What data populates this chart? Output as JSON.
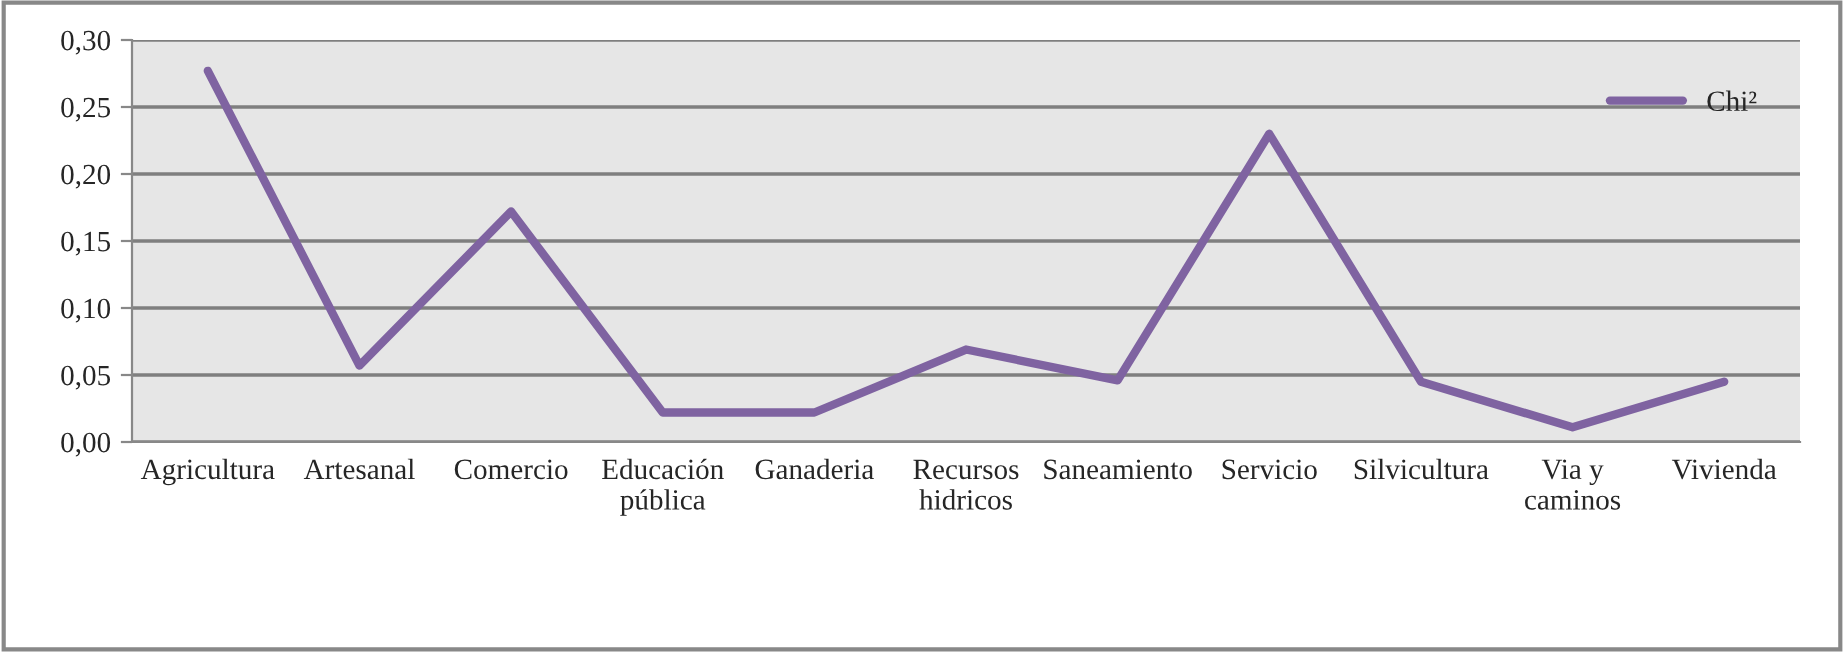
{
  "chart_data": {
    "type": "line",
    "categories": [
      "Agricultura",
      "Artesanal",
      "Comercio",
      "Educación\npública",
      "Ganaderia",
      "Recursos\nhidricos",
      "Saneamiento",
      "Servicio",
      "Silvicultura",
      "Via y\ncaminos",
      "Vivienda"
    ],
    "series": [
      {
        "name": "Chi²",
        "color": "#7f63a1",
        "values": [
          0.277,
          0.057,
          0.172,
          0.022,
          0.022,
          0.069,
          0.046,
          0.23,
          0.045,
          0.011,
          0.045
        ]
      }
    ],
    "ylim": [
      0,
      0.3
    ],
    "yticks": [
      {
        "value": 0,
        "label": "0,00"
      },
      {
        "value": 0.05,
        "label": "0,05"
      },
      {
        "value": 0.1,
        "label": "0,10"
      },
      {
        "value": 0.15,
        "label": "0,15"
      },
      {
        "value": 0.2,
        "label": "0,20"
      },
      {
        "value": 0.25,
        "label": "0,25"
      },
      {
        "value": 0.3,
        "label": "0,30"
      }
    ],
    "grid": "y",
    "legend": "top right",
    "marker": "none",
    "line_style": "solid"
  }
}
